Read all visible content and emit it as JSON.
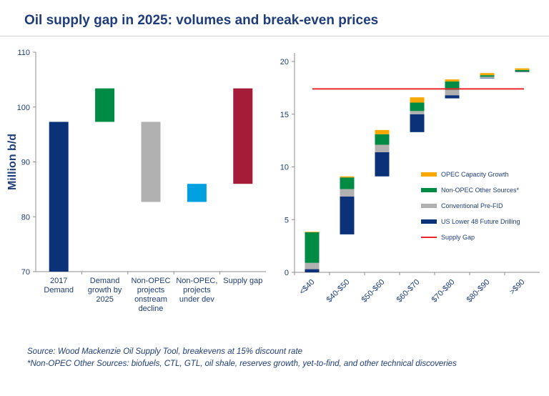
{
  "title": "Oil supply gap in 2025: volumes and break-even prices",
  "source_lines": [
    "Source: Wood Mackenzie Oil Supply Tool, breakevens at 15% discount rate",
    "*Non-OPEC Other Sources: biofuels, CTL, GTL, oil shale, reserves growth,  yet-to-find, and other technical discoveries"
  ],
  "chart_data": [
    {
      "type": "bar",
      "subtype": "waterfall",
      "ylabel": "Million b/d",
      "ylim": [
        70,
        110
      ],
      "yticks": [
        70,
        80,
        90,
        100,
        110
      ],
      "categories": [
        [
          "2017",
          "Demand"
        ],
        [
          "Demand",
          "growth by",
          "2025"
        ],
        [
          "Non-OPEC",
          "projects",
          "onstream",
          "decline"
        ],
        [
          "Non-OPEC,",
          "projects",
          "under dev"
        ],
        [
          "Supply gap"
        ]
      ],
      "bars": [
        {
          "bottom": 70,
          "top": 97.3,
          "color": "#0b3278"
        },
        {
          "bottom": 97.3,
          "top": 103.4,
          "color": "#008b45"
        },
        {
          "bottom": 82.7,
          "top": 97.3,
          "color": "#b1b1b1"
        },
        {
          "bottom": 82.7,
          "top": 86.0,
          "color": "#00a0e1"
        },
        {
          "bottom": 86.0,
          "top": 103.4,
          "color": "#a51c38"
        }
      ]
    },
    {
      "type": "bar",
      "subtype": "floating-stacked",
      "ylim": [
        0,
        20
      ],
      "yticks": [
        0,
        5,
        10,
        15,
        20
      ],
      "categories": [
        "<$40",
        "$40-$50",
        "$50-$60",
        "$60-$70",
        "$70-$80",
        "$80-$90",
        ">$90"
      ],
      "series": [
        {
          "name": "US Lower 48 Future Drilling",
          "color": "#0b3278"
        },
        {
          "name": "Conventional Pre-FID",
          "color": "#b1b1b1"
        },
        {
          "name": "Non-OPEC Other Sources*",
          "color": "#008b45"
        },
        {
          "name": "OPEC Capacity Growth",
          "color": "#f7a800"
        }
      ],
      "stacks": [
        {
          "base": 0,
          "values": [
            0.3,
            0.6,
            2.9,
            0.05
          ]
        },
        {
          "base": 3.6,
          "values": [
            3.6,
            0.7,
            1.1,
            0.1
          ]
        },
        {
          "base": 9.1,
          "values": [
            2.3,
            0.7,
            1.0,
            0.4
          ]
        },
        {
          "base": 13.3,
          "values": [
            1.7,
            0.3,
            0.8,
            0.5
          ]
        },
        {
          "base": 16.5,
          "values": [
            0.3,
            0.5,
            0.8,
            0.2
          ]
        },
        {
          "base": 18.4,
          "values": [
            0.05,
            0.1,
            0.15,
            0.2
          ]
        },
        {
          "base": 19.0,
          "values": [
            0.02,
            0.03,
            0.15,
            0.15
          ]
        }
      ],
      "reference_line": {
        "name": "Supply Gap",
        "value": 17.4,
        "color": "#e8262b"
      },
      "legend_order": [
        "OPEC Capacity Growth",
        "Non-OPEC Other Sources*",
        "Conventional Pre-FID",
        "US Lower 48 Future Drilling",
        "Supply Gap"
      ],
      "legend_placement": "center-right"
    }
  ]
}
